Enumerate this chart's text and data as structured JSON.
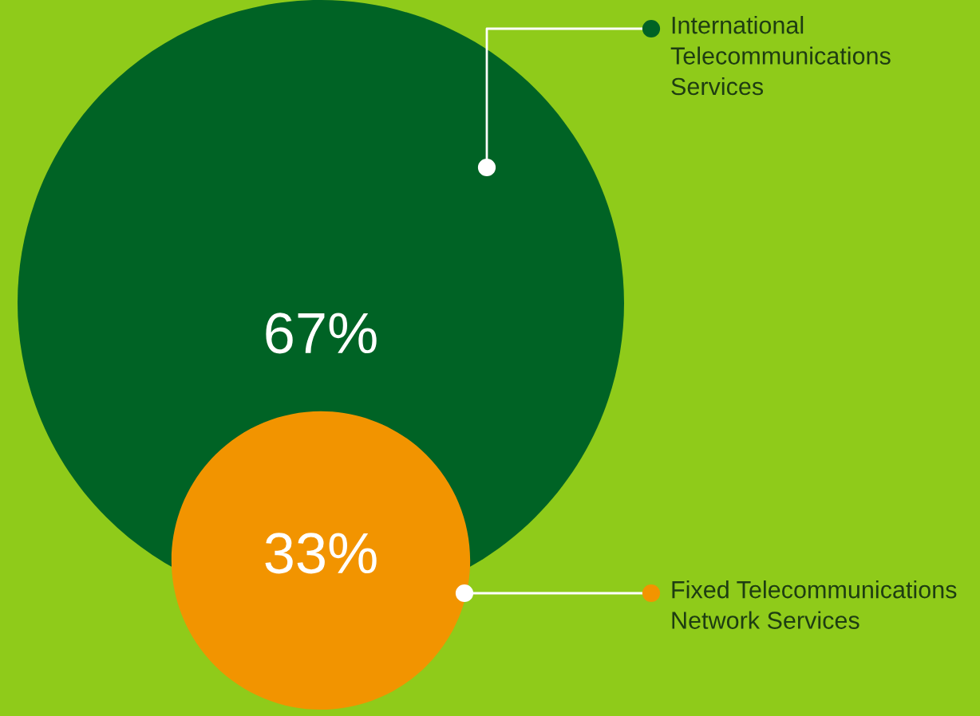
{
  "chart_data": {
    "type": "other",
    "categories": [
      "International\nTelecommunications\nServices",
      "Fixed Telecommunications\nNetwork Services"
    ],
    "values": [
      67,
      33
    ],
    "value_labels": [
      "67%",
      "33%"
    ],
    "colors": [
      "#006325",
      "#f29400"
    ]
  }
}
